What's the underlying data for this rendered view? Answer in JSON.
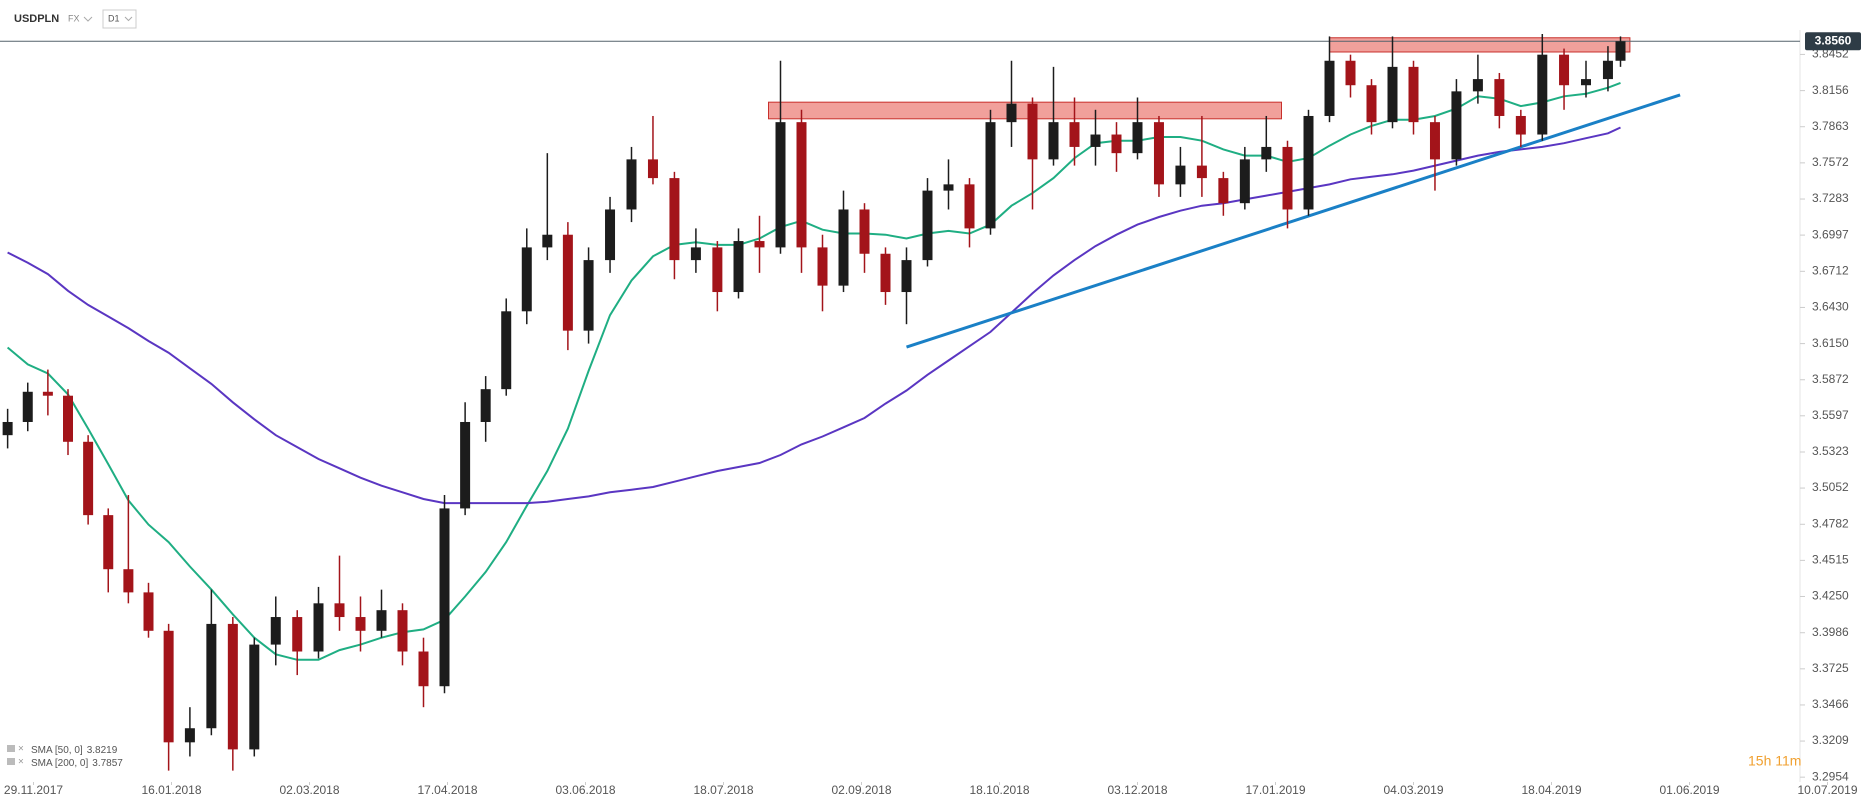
{
  "header": {
    "symbol": "USDPLN",
    "market": "FX",
    "interval": "D1"
  },
  "chart_data": {
    "type": "candlestick",
    "x": [
      "20.11.2017",
      "27.11.2017",
      "04.12.2017",
      "11.12.2017",
      "18.12.2017",
      "25.12.2017",
      "01.01.2018",
      "08.01.2018",
      "15.01.2018",
      "22.01.2018",
      "29.01.2018",
      "05.02.2018",
      "12.02.2018",
      "19.02.2018",
      "26.02.2018",
      "05.03.2018",
      "12.03.2018",
      "19.03.2018",
      "26.03.2018",
      "02.04.2018",
      "09.04.2018",
      "16.04.2018",
      "23.04.2018",
      "30.04.2018",
      "07.05.2018",
      "14.05.2018",
      "21.05.2018",
      "28.05.2018",
      "04.06.2018",
      "11.06.2018",
      "18.06.2018",
      "25.06.2018",
      "02.07.2018",
      "09.07.2018",
      "16.07.2018",
      "23.07.2018",
      "30.07.2018",
      "06.08.2018",
      "13.08.2018",
      "20.08.2018",
      "27.08.2018",
      "03.09.2018",
      "10.09.2018",
      "17.09.2018",
      "24.09.2018",
      "01.10.2018",
      "08.10.2018",
      "15.10.2018",
      "22.10.2018",
      "29.10.2018",
      "05.11.2018",
      "12.11.2018",
      "19.11.2018",
      "26.11.2018",
      "03.12.2018",
      "10.12.2018",
      "17.12.2018",
      "24.12.2018",
      "31.12.2018",
      "07.01.2019",
      "14.01.2019",
      "21.01.2019",
      "28.01.2019",
      "04.02.2019",
      "11.02.2019",
      "18.02.2019",
      "25.02.2019",
      "04.03.2019",
      "11.03.2019",
      "18.03.2019",
      "25.03.2019",
      "01.04.2019",
      "08.04.2019",
      "15.04.2019",
      "22.04.2019",
      "29.04.2019",
      "06.05.2019",
      "10.05.2019"
    ],
    "open": [
      3.545,
      3.555,
      3.578,
      3.575,
      3.54,
      3.485,
      3.445,
      3.428,
      3.4,
      3.32,
      3.33,
      3.405,
      3.315,
      3.39,
      3.41,
      3.385,
      3.42,
      3.41,
      3.4,
      3.415,
      3.385,
      3.36,
      3.49,
      3.555,
      3.58,
      3.64,
      3.69,
      3.7,
      3.625,
      3.68,
      3.72,
      3.76,
      3.745,
      3.68,
      3.69,
      3.655,
      3.695,
      3.69,
      3.79,
      3.69,
      3.66,
      3.72,
      3.685,
      3.655,
      3.68,
      3.735,
      3.74,
      3.705,
      3.79,
      3.805,
      3.76,
      3.79,
      3.77,
      3.78,
      3.765,
      3.79,
      3.74,
      3.755,
      3.745,
      3.725,
      3.76,
      3.77,
      3.72,
      3.795,
      3.84,
      3.82,
      3.79,
      3.835,
      3.79,
      3.76,
      3.815,
      3.825,
      3.795,
      3.78,
      3.845,
      3.82,
      3.825,
      3.84
    ],
    "high": [
      3.565,
      3.585,
      3.595,
      3.58,
      3.545,
      3.49,
      3.5,
      3.435,
      3.405,
      3.345,
      3.43,
      3.41,
      3.395,
      3.425,
      3.415,
      3.432,
      3.455,
      3.425,
      3.43,
      3.42,
      3.395,
      3.5,
      3.57,
      3.59,
      3.65,
      3.705,
      3.765,
      3.71,
      3.69,
      3.73,
      3.77,
      3.795,
      3.75,
      3.705,
      3.695,
      3.705,
      3.715,
      3.84,
      3.8,
      3.7,
      3.735,
      3.725,
      3.69,
      3.69,
      3.745,
      3.76,
      3.745,
      3.8,
      3.84,
      3.81,
      3.835,
      3.81,
      3.8,
      3.79,
      3.81,
      3.795,
      3.77,
      3.795,
      3.75,
      3.77,
      3.795,
      3.775,
      3.8,
      3.86,
      3.845,
      3.825,
      3.86,
      3.84,
      3.795,
      3.825,
      3.845,
      3.83,
      3.8,
      3.862,
      3.85,
      3.84,
      3.852,
      3.86
    ],
    "low": [
      3.535,
      3.548,
      3.56,
      3.53,
      3.478,
      3.428,
      3.42,
      3.395,
      3.3,
      3.31,
      3.325,
      3.3,
      3.31,
      3.375,
      3.368,
      3.38,
      3.4,
      3.385,
      3.395,
      3.375,
      3.345,
      3.355,
      3.485,
      3.54,
      3.575,
      3.63,
      3.68,
      3.61,
      3.615,
      3.67,
      3.71,
      3.74,
      3.665,
      3.67,
      3.64,
      3.65,
      3.67,
      3.685,
      3.67,
      3.64,
      3.655,
      3.67,
      3.645,
      3.63,
      3.675,
      3.72,
      3.69,
      3.7,
      3.77,
      3.72,
      3.755,
      3.755,
      3.755,
      3.75,
      3.76,
      3.73,
      3.73,
      3.73,
      3.715,
      3.72,
      3.75,
      3.705,
      3.715,
      3.79,
      3.81,
      3.78,
      3.785,
      3.78,
      3.735,
      3.755,
      3.805,
      3.785,
      3.77,
      3.775,
      3.8,
      3.81,
      3.815,
      3.835
    ],
    "close": [
      3.555,
      3.578,
      3.575,
      3.54,
      3.485,
      3.445,
      3.428,
      3.4,
      3.32,
      3.33,
      3.405,
      3.315,
      3.39,
      3.41,
      3.385,
      3.42,
      3.41,
      3.4,
      3.415,
      3.385,
      3.36,
      3.49,
      3.555,
      3.58,
      3.64,
      3.69,
      3.7,
      3.625,
      3.68,
      3.72,
      3.76,
      3.745,
      3.68,
      3.69,
      3.655,
      3.695,
      3.69,
      3.79,
      3.69,
      3.66,
      3.72,
      3.685,
      3.655,
      3.68,
      3.735,
      3.74,
      3.705,
      3.79,
      3.805,
      3.76,
      3.79,
      3.77,
      3.78,
      3.765,
      3.79,
      3.74,
      3.755,
      3.745,
      3.725,
      3.76,
      3.77,
      3.72,
      3.795,
      3.84,
      3.82,
      3.79,
      3.835,
      3.79,
      3.76,
      3.815,
      3.825,
      3.795,
      3.78,
      3.845,
      3.82,
      3.825,
      3.84,
      3.856
    ],
    "up_color": "#1c1c1c",
    "down_color": "#a3141a",
    "series": [
      {
        "name": "SMA [50, 0]",
        "color": "#1fae83",
        "values": [
          3.612,
          3.599,
          3.592,
          3.576,
          3.55,
          3.523,
          3.496,
          3.478,
          3.465,
          3.447,
          3.43,
          3.412,
          3.395,
          3.383,
          3.379,
          3.379,
          3.386,
          3.39,
          3.395,
          3.399,
          3.401,
          3.408,
          3.425,
          3.443,
          3.465,
          3.492,
          3.518,
          3.55,
          3.594,
          3.637,
          3.664,
          3.683,
          3.692,
          3.694,
          3.692,
          3.692,
          3.697,
          3.706,
          3.711,
          3.704,
          3.701,
          3.701,
          3.7,
          3.697,
          3.701,
          3.703,
          3.701,
          3.708,
          3.723,
          3.733,
          3.745,
          3.761,
          3.773,
          3.775,
          3.775,
          3.778,
          3.778,
          3.775,
          3.768,
          3.763,
          3.763,
          3.758,
          3.761,
          3.771,
          3.78,
          3.787,
          3.792,
          3.792,
          3.795,
          3.801,
          3.811,
          3.809,
          3.803,
          3.806,
          3.811,
          3.813,
          3.818,
          3.8219
        ]
      },
      {
        "name": "SMA [200, 0]",
        "color": "#5a36c2",
        "values": [
          3.686,
          3.678,
          3.669,
          3.656,
          3.645,
          3.636,
          3.627,
          3.617,
          3.608,
          3.596,
          3.584,
          3.57,
          3.557,
          3.545,
          3.536,
          3.527,
          3.52,
          3.513,
          3.507,
          3.502,
          3.497,
          3.494,
          3.494,
          3.494,
          3.494,
          3.494,
          3.495,
          3.497,
          3.499,
          3.502,
          3.504,
          3.506,
          3.51,
          3.514,
          3.518,
          3.521,
          3.524,
          3.53,
          3.538,
          3.544,
          3.551,
          3.558,
          3.569,
          3.579,
          3.591,
          3.602,
          3.613,
          3.624,
          3.639,
          3.654,
          3.668,
          3.68,
          3.691,
          3.7,
          3.708,
          3.714,
          3.719,
          3.723,
          3.725,
          3.728,
          3.731,
          3.734,
          3.737,
          3.74,
          3.744,
          3.746,
          3.748,
          3.751,
          3.755,
          3.759,
          3.763,
          3.766,
          3.768,
          3.77,
          3.773,
          3.777,
          3.781,
          3.7857
        ]
      }
    ],
    "legend": "lower left",
    "trendline": {
      "color": "#1a80c6",
      "x": [
        "17.09.2018",
        "29.05.2019"
      ],
      "values": [
        3.6123,
        3.8121
      ]
    },
    "zone_color": "#ef8f8a",
    "zones": [
      {
        "x": [
          "02.08.2018",
          "19.01.2019"
        ],
        "values": [
          3.8062,
          3.7927
        ]
      },
      {
        "x": [
          "04.02.2019",
          "13.05.2019"
        ],
        "values": [
          3.8589,
          3.8472
        ]
      }
    ],
    "last_price": {
      "value": 3.856,
      "label": "3.8560"
    },
    "log_scale": true,
    "ylim": [
      3.292,
      3.862
    ],
    "yticks": [
      3.8452,
      3.8156,
      3.7863,
      3.7572,
      3.7283,
      3.6997,
      3.6712,
      {
        "value": 3.643,
        "label": "3.6430"
      },
      {
        "value": 3.615,
        "label": "3.6150"
      },
      3.5872,
      3.5597,
      3.5323,
      3.5052,
      3.4782,
      3.4515,
      {
        "value": 3.425,
        "label": "3.4250"
      },
      3.3986,
      3.3725,
      3.3466,
      3.3209,
      3.2954
    ],
    "xticks": [
      "29.11.2017",
      "16.01.2018",
      "02.03.2018",
      "17.04.2018",
      "03.06.2018",
      "18.07.2018",
      "02.09.2018",
      "18.10.2018",
      "03.12.2018",
      "17.01.2019",
      "04.03.2019",
      "18.04.2019",
      "01.06.2019",
      "10.07.2019"
    ],
    "countdown": "15h 11m"
  }
}
